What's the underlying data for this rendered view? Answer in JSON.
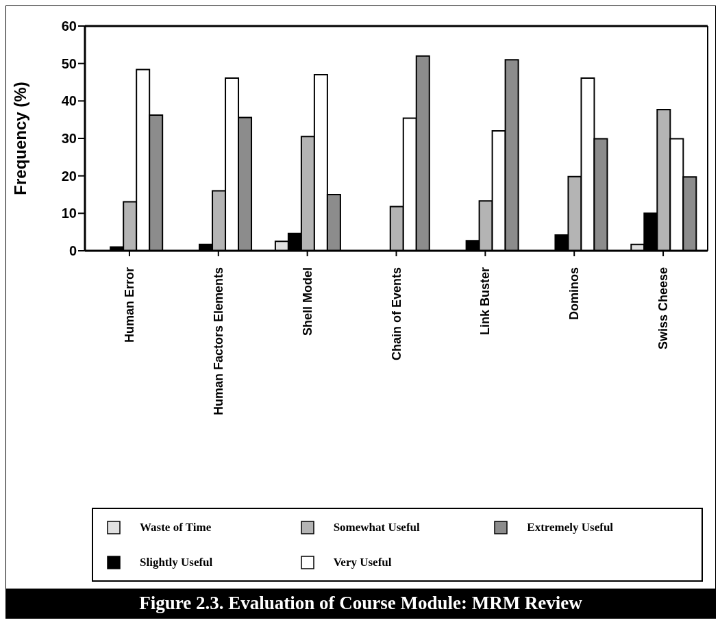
{
  "chart_data": {
    "type": "bar",
    "title": "Figure 2.3.  Evaluation of Course Module:  MRM Review",
    "ylabel": "Frequency (%)",
    "categories": [
      "Human Error",
      "Human Factors Elements",
      "Shell Model",
      "Chain of Events",
      "Link Buster",
      "Dominos",
      "Swiss Cheese"
    ],
    "series": [
      {
        "name": "Waste of Time",
        "color": "#e0e0e0",
        "values": [
          0,
          0,
          2.5,
          0,
          0,
          0,
          1.7
        ]
      },
      {
        "name": "Slightly Useful",
        "color": "#000000",
        "values": [
          1,
          1.7,
          4.6,
          0,
          2.7,
          4.2,
          10
        ]
      },
      {
        "name": "Somewhat Useful",
        "color": "#b4b4b4",
        "values": [
          13.1,
          16,
          30.5,
          11.8,
          13.3,
          19.8,
          37.7
        ]
      },
      {
        "name": "Very Useful",
        "color": "#ffffff",
        "values": [
          48.4,
          46.1,
          47,
          35.4,
          32,
          46.1,
          29.9
        ]
      },
      {
        "name": "Extremely Useful",
        "color": "#8c8c8c",
        "values": [
          36.2,
          35.6,
          15,
          52,
          51,
          29.9,
          19.7
        ]
      }
    ],
    "ylim": [
      0,
      60
    ],
    "yticks": [
      0,
      10,
      20,
      30,
      40,
      50,
      60
    ],
    "grid": false,
    "legend": "bottom"
  }
}
